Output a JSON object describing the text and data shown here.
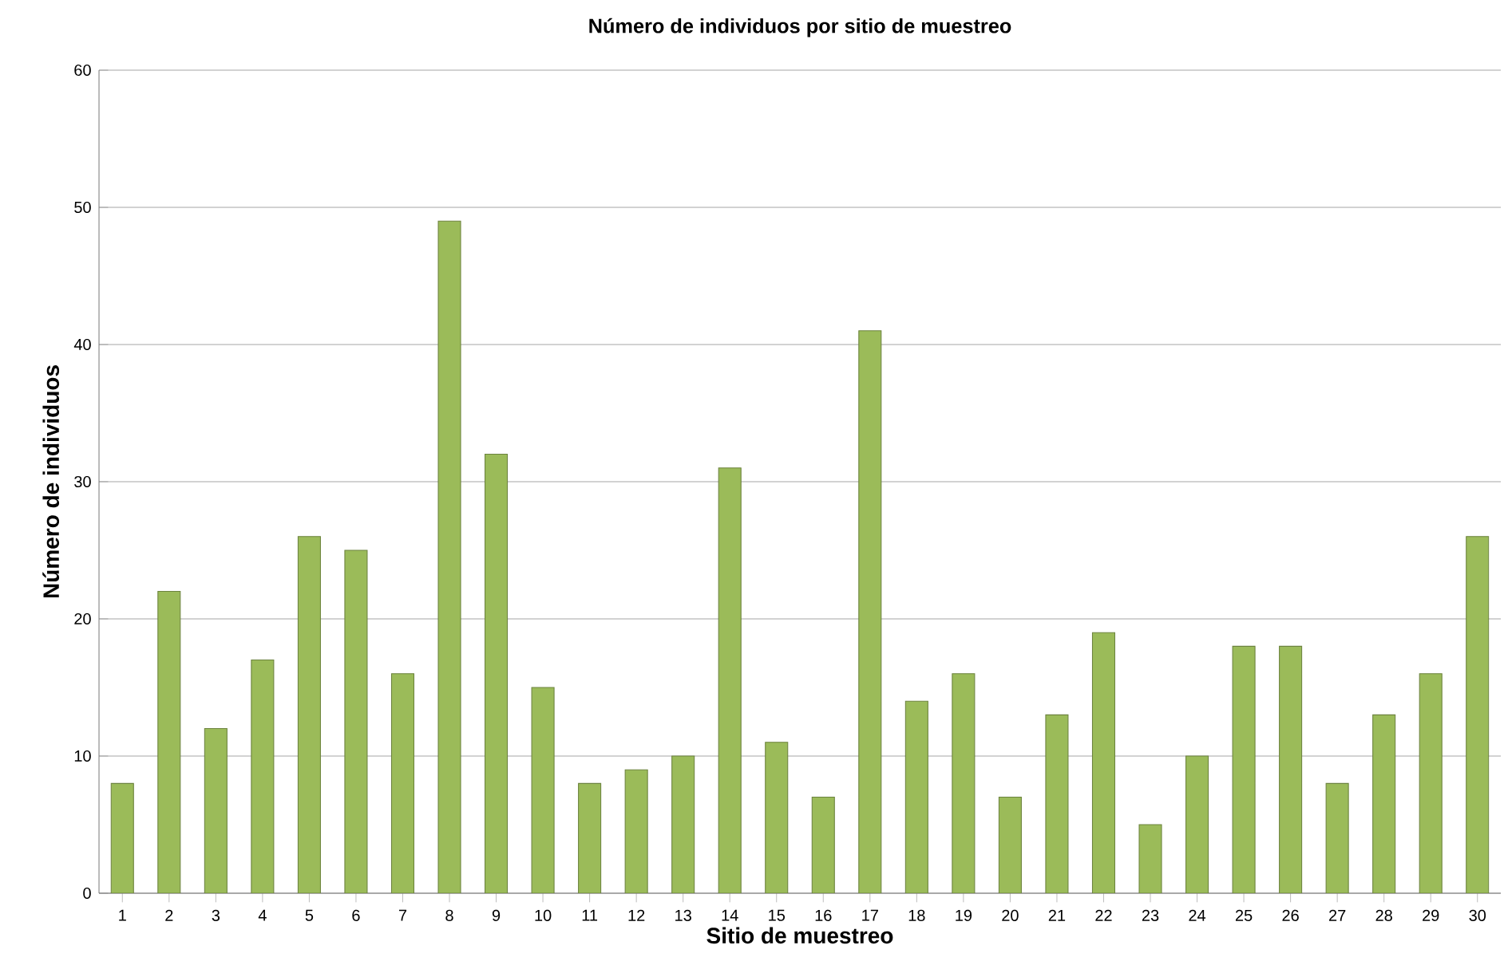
{
  "chart_data": {
    "type": "bar",
    "title": "Número de individuos por sitio de muestreo",
    "xlabel": "Sitio de muestreo",
    "ylabel": "Número de individuos",
    "categories": [
      "1",
      "2",
      "3",
      "4",
      "5",
      "6",
      "7",
      "8",
      "9",
      "10",
      "11",
      "12",
      "13",
      "14",
      "15",
      "16",
      "17",
      "18",
      "19",
      "20",
      "21",
      "22",
      "23",
      "24",
      "25",
      "26",
      "27",
      "28",
      "29",
      "30"
    ],
    "values": [
      8,
      22,
      12,
      17,
      26,
      25,
      16,
      49,
      32,
      15,
      8,
      9,
      10,
      31,
      11,
      7,
      41,
      14,
      16,
      7,
      13,
      19,
      5,
      10,
      18,
      18,
      8,
      13,
      16,
      26
    ],
    "color": "#9bbb59",
    "ylim": [
      0,
      60
    ],
    "yticks": [
      0,
      10,
      20,
      30,
      40,
      50,
      60
    ],
    "grid": "y"
  }
}
